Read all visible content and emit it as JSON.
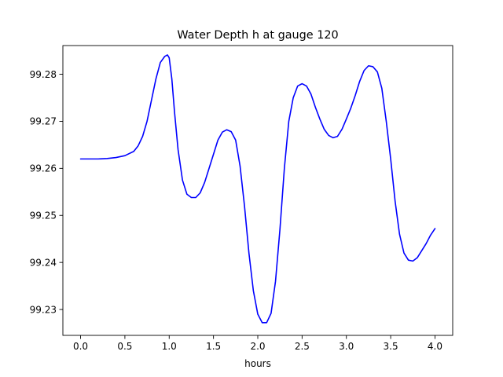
{
  "chart_data": {
    "type": "line",
    "title": "Water Depth h at gauge 120",
    "xlabel": "hours",
    "ylabel": "",
    "xlim": [
      -0.2,
      4.2
    ],
    "ylim": [
      99.2245,
      99.2861
    ],
    "x_ticks": [
      0.0,
      0.5,
      1.0,
      1.5,
      2.0,
      2.5,
      3.0,
      3.5,
      4.0
    ],
    "x_tick_labels": [
      "0.0",
      "0.5",
      "1.0",
      "1.5",
      "2.0",
      "2.5",
      "3.0",
      "3.5",
      "4.0"
    ],
    "y_ticks": [
      99.23,
      99.24,
      99.25,
      99.26,
      99.27,
      99.28
    ],
    "y_tick_labels": [
      "99.23",
      "99.24",
      "99.25",
      "99.26",
      "99.27",
      "99.28"
    ],
    "grid": false,
    "legend": "none",
    "series": [
      {
        "color": "#0000ff",
        "points": [
          [
            0.0,
            99.262
          ],
          [
            0.1,
            99.262
          ],
          [
            0.2,
            99.262
          ],
          [
            0.3,
            99.2621
          ],
          [
            0.4,
            99.2623
          ],
          [
            0.5,
            99.2627
          ],
          [
            0.6,
            99.2636
          ],
          [
            0.65,
            99.2648
          ],
          [
            0.7,
            99.2668
          ],
          [
            0.75,
            99.27
          ],
          [
            0.8,
            99.2745
          ],
          [
            0.85,
            99.279
          ],
          [
            0.9,
            99.2825
          ],
          [
            0.95,
            99.2838
          ],
          [
            0.98,
            99.2841
          ],
          [
            1.0,
            99.2835
          ],
          [
            1.03,
            99.279
          ],
          [
            1.06,
            99.272
          ],
          [
            1.1,
            99.264
          ],
          [
            1.15,
            99.2575
          ],
          [
            1.2,
            99.2545
          ],
          [
            1.25,
            99.2538
          ],
          [
            1.3,
            99.2538
          ],
          [
            1.35,
            99.2548
          ],
          [
            1.4,
            99.257
          ],
          [
            1.45,
            99.26
          ],
          [
            1.5,
            99.263
          ],
          [
            1.55,
            99.266
          ],
          [
            1.6,
            99.2677
          ],
          [
            1.65,
            99.2682
          ],
          [
            1.7,
            99.2678
          ],
          [
            1.75,
            99.266
          ],
          [
            1.8,
            99.2605
          ],
          [
            1.85,
            99.252
          ],
          [
            1.9,
            99.242
          ],
          [
            1.95,
            99.234
          ],
          [
            2.0,
            99.229
          ],
          [
            2.05,
            99.2272
          ],
          [
            2.1,
            99.2272
          ],
          [
            2.15,
            99.2292
          ],
          [
            2.2,
            99.236
          ],
          [
            2.25,
            99.247
          ],
          [
            2.3,
            99.26
          ],
          [
            2.35,
            99.27
          ],
          [
            2.4,
            99.275
          ],
          [
            2.45,
            99.2775
          ],
          [
            2.5,
            99.278
          ],
          [
            2.55,
            99.2775
          ],
          [
            2.6,
            99.2758
          ],
          [
            2.65,
            99.273
          ],
          [
            2.7,
            99.2705
          ],
          [
            2.75,
            99.2683
          ],
          [
            2.8,
            99.267
          ],
          [
            2.85,
            99.2665
          ],
          [
            2.9,
            99.2668
          ],
          [
            2.95,
            99.2683
          ],
          [
            3.0,
            99.2705
          ],
          [
            3.05,
            99.2728
          ],
          [
            3.1,
            99.2755
          ],
          [
            3.15,
            99.2785
          ],
          [
            3.2,
            99.2808
          ],
          [
            3.25,
            99.2818
          ],
          [
            3.3,
            99.2816
          ],
          [
            3.35,
            99.2805
          ],
          [
            3.4,
            99.277
          ],
          [
            3.45,
            99.27
          ],
          [
            3.5,
            99.262
          ],
          [
            3.55,
            99.253
          ],
          [
            3.6,
            99.246
          ],
          [
            3.65,
            99.242
          ],
          [
            3.7,
            99.2405
          ],
          [
            3.75,
            99.2403
          ],
          [
            3.8,
            99.241
          ],
          [
            3.85,
            99.2425
          ],
          [
            3.9,
            99.244
          ],
          [
            3.95,
            99.2458
          ],
          [
            4.0,
            99.2472
          ]
        ]
      }
    ]
  }
}
